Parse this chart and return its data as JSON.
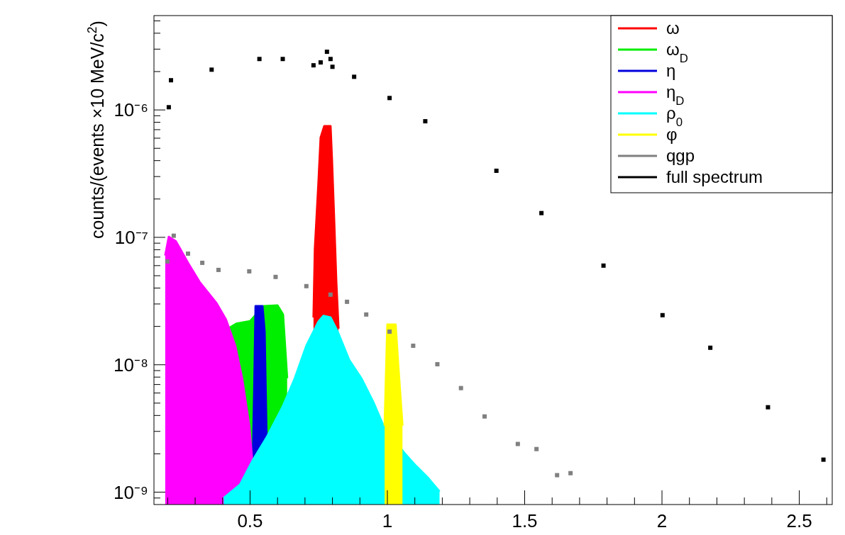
{
  "chart_data": {
    "type": "area",
    "ylabel": "counts/(events ×10 MeV/c$^{2}$)",
    "log": true,
    "legend": "top right",
    "grid": false,
    "xlim": [
      0.15,
      2.62
    ],
    "ylim": [
      8e-10,
      5.5e-06
    ],
    "xticks": [
      {
        "value": 0.2,
        "label": null
      },
      {
        "value": 0.3,
        "label": null
      },
      {
        "value": 0.4,
        "label": null
      },
      0.5,
      {
        "value": 0.6,
        "label": null
      },
      {
        "value": 0.7,
        "label": null
      },
      {
        "value": 0.8,
        "label": null
      },
      {
        "value": 0.9,
        "label": null
      },
      1,
      {
        "value": 1.1,
        "label": null
      },
      {
        "value": 1.2,
        "label": null
      },
      {
        "value": 1.3,
        "label": null
      },
      {
        "value": 1.4,
        "label": null
      },
      1.5,
      {
        "value": 1.6,
        "label": null
      },
      {
        "value": 1.7,
        "label": null
      },
      {
        "value": 1.8,
        "label": null
      },
      {
        "value": 1.9,
        "label": null
      },
      2,
      {
        "value": 2.1,
        "label": null
      },
      {
        "value": 2.2,
        "label": null
      },
      {
        "value": 2.3,
        "label": null
      },
      {
        "value": 2.4,
        "label": null
      },
      2.5,
      {
        "value": 2.6,
        "label": null
      }
    ],
    "yticks": [
      {
        "value": 9e-10,
        "label": null
      },
      {
        "value": 1e-09,
        "label": "10⁻⁹"
      },
      {
        "value": 2e-09,
        "label": null
      },
      {
        "value": 3e-09,
        "label": null
      },
      {
        "value": 4e-09,
        "label": null
      },
      {
        "value": 5e-09,
        "label": null
      },
      {
        "value": 6e-09,
        "label": null
      },
      {
        "value": 7e-09,
        "label": null
      },
      {
        "value": 8e-09,
        "label": null
      },
      {
        "value": 9e-09,
        "label": null
      },
      {
        "value": 1e-08,
        "label": "10⁻⁸"
      },
      {
        "value": 2e-08,
        "label": null
      },
      {
        "value": 3e-08,
        "label": null
      },
      {
        "value": 4e-08,
        "label": null
      },
      {
        "value": 5e-08,
        "label": null
      },
      {
        "value": 6e-08,
        "label": null
      },
      {
        "value": 7e-08,
        "label": null
      },
      {
        "value": 8e-08,
        "label": null
      },
      {
        "value": 9e-08,
        "label": null
      },
      {
        "value": 1e-07,
        "label": "10⁻⁷"
      },
      {
        "value": 2e-07,
        "label": null
      },
      {
        "value": 3e-07,
        "label": null
      },
      {
        "value": 4e-07,
        "label": null
      },
      {
        "value": 5e-07,
        "label": null
      },
      {
        "value": 6e-07,
        "label": null
      },
      {
        "value": 7e-07,
        "label": null
      },
      {
        "value": 8e-07,
        "label": null
      },
      {
        "value": 9e-07,
        "label": null
      },
      {
        "value": 1e-06,
        "label": "10⁻⁶"
      },
      {
        "value": 2e-06,
        "label": null
      },
      {
        "value": 3e-06,
        "label": null
      },
      {
        "value": 4e-06,
        "label": null
      },
      {
        "value": 5e-06,
        "label": null
      }
    ],
    "series": [
      {
        "name": "ω",
        "color": "#ff0000",
        "x": [
          0.731,
          0.736,
          0.749,
          0.757,
          0.77,
          0.793,
          0.798,
          0.806,
          0.814,
          0.822
        ],
        "values": [
          2.35e-08,
          8.15e-08,
          2.68e-07,
          6.07e-07,
          7.45e-07,
          7.45e-07,
          4.19e-07,
          1.41e-07,
          4.47e-08,
          1.92e-08
        ]
      },
      {
        "name": "ω$_{D}$",
        "color": "#00ee00",
        "x": [
          0.42,
          0.45,
          0.5,
          0.55,
          0.6,
          0.62,
          0.635
        ],
        "values": [
          1.92e-08,
          2.1e-08,
          2.2e-08,
          2.89e-08,
          2.92e-08,
          2.48e-08,
          7.84e-09
        ]
      },
      {
        "name": "η",
        "color": "#0000dd",
        "x": [
          0.51,
          0.515,
          0.52,
          0.545,
          0.553,
          0.56
        ],
        "values": [
          1.75e-09,
          6.3e-09,
          2.89e-08,
          2.89e-08,
          1.82e-08,
          2.68e-09
        ]
      },
      {
        "name": "η$_{D}$",
        "color": "#ff00ff",
        "x": [
          0.191,
          0.204,
          0.23,
          0.274,
          0.316,
          0.378,
          0.412,
          0.446,
          0.471,
          0.497,
          0.508
        ],
        "values": [
          7.2e-08,
          1.01e-07,
          9.3e-08,
          6.31e-08,
          4.47e-08,
          3.04e-08,
          2.27e-08,
          1.41e-08,
          7.84e-09,
          3.33e-09,
          1.75e-09
        ]
      },
      {
        "name": "ρ$_{0}$",
        "color": "#00ffff",
        "x": [
          0.404,
          0.464,
          0.508,
          0.56,
          0.619,
          0.663,
          0.705,
          0.749,
          0.767,
          0.793,
          0.819,
          0.861,
          0.905,
          0.949,
          0.982,
          1.06,
          1.104,
          1.146,
          1.19
        ],
        "values": [
          9e-10,
          1.15e-09,
          1.75e-09,
          2.68e-09,
          4.7e-09,
          7.84e-09,
          1.41e-08,
          2.18e-08,
          2.42e-08,
          2.35e-08,
          1.82e-08,
          1.09e-08,
          7.84e-09,
          5.08e-09,
          3.46e-09,
          2.05e-09,
          1.61e-09,
          1.31e-09,
          1.01e-09
        ]
      },
      {
        "name": "φ",
        "color": "#ffff00",
        "x": [
          0.99,
          1.0,
          1.03,
          1.04,
          1.055
        ],
        "values": [
          3.33e-09,
          2.07e-08,
          2.07e-08,
          9.6e-09,
          3.33e-09
        ]
      },
      {
        "name": "qgp",
        "type": "scatter",
        "marker": "square",
        "color": "#808080",
        "x": [
          0.199,
          0.222,
          0.274,
          0.326,
          0.385,
          0.497,
          0.593,
          0.705,
          0.793,
          0.853,
          0.923,
          1.008,
          1.094,
          1.182,
          1.268,
          1.354,
          1.475,
          1.543,
          1.618,
          1.667
        ],
        "values": [
          6.47e-08,
          1.03e-07,
          7.45e-08,
          6.31e-08,
          5.55e-08,
          5.41e-08,
          4.89e-08,
          4.14e-08,
          3.55e-08,
          3.12e-08,
          2.48e-08,
          1.82e-08,
          1.41e-08,
          1.01e-08,
          6.56e-09,
          3.93e-09,
          2.39e-09,
          2.18e-09,
          1.36e-09,
          1.41e-09
        ]
      },
      {
        "name": "full spectrum",
        "type": "scatter",
        "marker": "square",
        "color": "#000000",
        "x": [
          0.204,
          0.212,
          0.36,
          0.534,
          0.619,
          0.731,
          0.757,
          0.78,
          0.793,
          0.8,
          0.879,
          1.008,
          1.138,
          1.397,
          1.561,
          1.787,
          2.002,
          2.176,
          2.386,
          2.588
        ],
        "values": [
          1.05e-06,
          1.71e-06,
          2.07e-06,
          2.51e-06,
          2.51e-06,
          2.24e-06,
          2.36e-06,
          2.86e-06,
          2.51e-06,
          2.18e-06,
          1.82e-06,
          1.24e-06,
          8.15e-07,
          3.33e-07,
          1.55e-07,
          6e-08,
          2.45e-08,
          1.36e-08,
          4.64e-09,
          1.8e-09
        ]
      }
    ]
  }
}
